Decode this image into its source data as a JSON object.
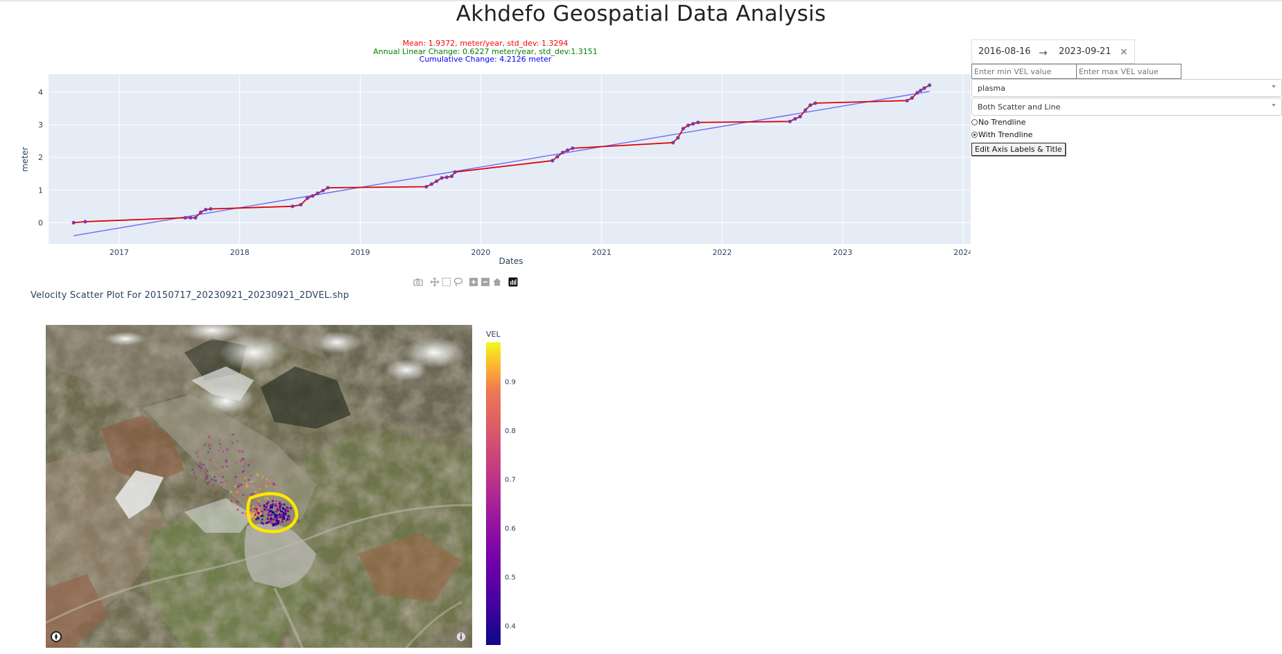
{
  "app": {
    "title": "Akhdefo Geospatial Data Analysis"
  },
  "controls": {
    "date_range": {
      "start": "2016-08-16",
      "end": "2023-09-21",
      "arrow": "→",
      "clear": "×"
    },
    "min_vel_placeholder": "Enter min VEL value",
    "max_vel_placeholder": "Enter max VEL value",
    "colorscale": "plasma",
    "plot_type": "Both Scatter and Line",
    "trendline_options": [
      {
        "label": "No Trendline",
        "selected": false
      },
      {
        "label": "With Trendline",
        "selected": true
      }
    ],
    "edit_button": "Edit Axis Labels & Title"
  },
  "stats": {
    "mean": "Mean: 1.9372, meter/year, std_dev: 1.3294",
    "linear": "Annual Linear Change: 0.6227 meter/year, std_dev:1.3151",
    "cumulative": "Cumulative Change: 4.2126 meter"
  },
  "colors": {
    "line": "#e00000",
    "marker": "#7a3aa8",
    "trend": "#6b6bf5",
    "plot_bg": "#e5ecf6",
    "stat_mean": "#ff0000",
    "stat_linear": "#008000",
    "stat_cumulative": "#0000ff",
    "polygon": "#ffe600"
  },
  "chart_data": [
    {
      "type": "line",
      "title": "",
      "xlabel": "Dates",
      "ylabel": "meter",
      "x_ticks": [
        "2017",
        "2018",
        "2019",
        "2020",
        "2021",
        "2022",
        "2023",
        "2024"
      ],
      "y_ticks": [
        "0",
        "1",
        "2",
        "3",
        "4"
      ],
      "xlim": [
        "2016-06-01",
        "2024-02-01"
      ],
      "ylim": [
        -0.65,
        4.55
      ],
      "grid": true,
      "series": [
        {
          "mode": "lines+markers",
          "x": [
            "2016-08-16",
            "2016-09-20",
            "2017-07-20",
            "2017-08-05",
            "2017-08-20",
            "2017-09-05",
            "2017-09-20",
            "2017-10-05",
            "2018-06-10",
            "2018-07-05",
            "2018-07-25",
            "2018-08-10",
            "2018-08-25",
            "2018-09-10",
            "2018-09-25",
            "2019-07-20",
            "2019-08-05",
            "2019-08-20",
            "2019-09-05",
            "2019-09-20",
            "2019-10-05",
            "2019-10-15",
            "2020-08-05",
            "2020-08-20",
            "2020-09-05",
            "2020-09-20",
            "2020-10-05",
            "2021-08-05",
            "2021-08-20",
            "2021-09-05",
            "2021-09-20",
            "2021-10-05",
            "2021-10-20",
            "2022-07-25",
            "2022-08-10",
            "2022-08-25",
            "2022-09-10",
            "2022-09-25",
            "2022-10-10",
            "2023-07-15",
            "2023-07-30",
            "2023-08-15",
            "2023-08-25",
            "2023-09-05",
            "2023-09-21"
          ],
          "y": [
            0.0,
            0.03,
            0.15,
            0.15,
            0.15,
            0.32,
            0.4,
            0.42,
            0.5,
            0.55,
            0.75,
            0.82,
            0.9,
            0.98,
            1.07,
            1.1,
            1.18,
            1.27,
            1.37,
            1.39,
            1.42,
            1.55,
            1.9,
            2.02,
            2.15,
            2.22,
            2.28,
            2.45,
            2.6,
            2.88,
            2.98,
            3.03,
            3.07,
            3.1,
            3.18,
            3.25,
            3.45,
            3.6,
            3.66,
            3.74,
            3.82,
            3.98,
            4.05,
            4.12,
            4.21
          ]
        },
        {
          "mode": "lines",
          "x": [
            "2016-08-16",
            "2023-09-21"
          ],
          "y": [
            -0.4,
            4.02
          ]
        }
      ]
    },
    {
      "type": "scatter",
      "title": "Velocity Scatter Plot For 20150717_20230921_20230921_2DVEL.shp",
      "colorbar_title": "VEL",
      "colorbar_ticks": [
        "0.4",
        "0.5",
        "0.6",
        "0.7",
        "0.8",
        "0.9"
      ],
      "colorbar_range": [
        0.36,
        0.98
      ],
      "colorscale": "plasma"
    }
  ],
  "modebar_icons": [
    "camera-icon",
    "pan-icon",
    "box-select-icon",
    "lasso-icon",
    "zoom-in-icon",
    "zoom-out-icon",
    "home-icon",
    "plotly-logo-icon"
  ],
  "map_icons": [
    "compass-icon",
    "info-icon"
  ]
}
